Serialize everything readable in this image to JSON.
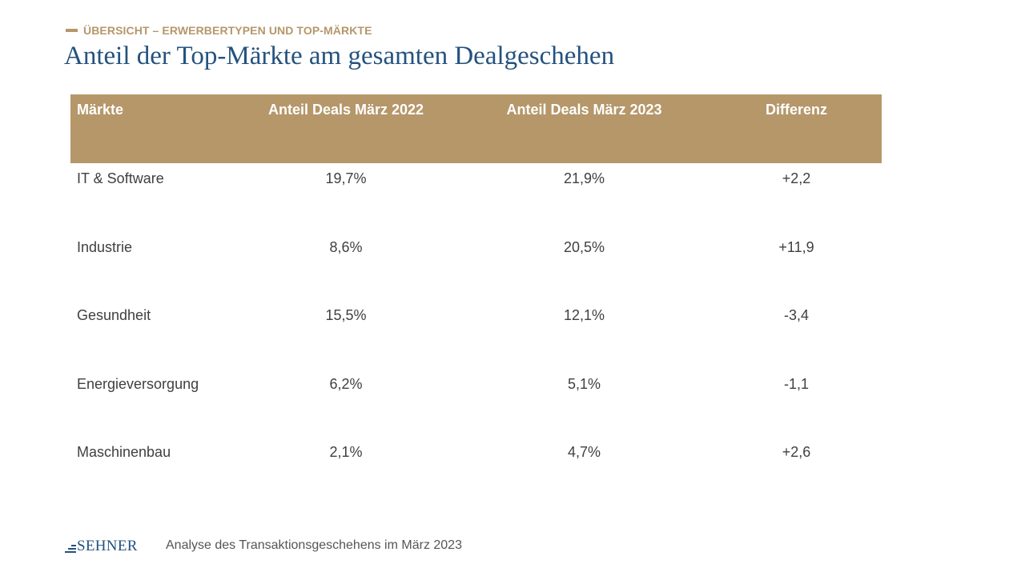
{
  "header": {
    "kicker": "ÜBERSICHT – ERWERBERTYPEN  UND TOP-MÄRKTE",
    "title": "Anteil der Top-Märkte am gesamten Dealgeschehen"
  },
  "table": {
    "columns": [
      "Märkte",
      "Anteil Deals März 2022",
      "Anteil Deals März 2023",
      "Differenz"
    ],
    "rows": [
      {
        "market": "IT & Software",
        "share_2022": "19,7%",
        "share_2023": "21,9%",
        "diff": "+2,2"
      },
      {
        "market": "Industrie",
        "share_2022": "8,6%",
        "share_2023": "20,5%",
        "diff": "+11,9"
      },
      {
        "market": "Gesundheit",
        "share_2022": "15,5%",
        "share_2023": "12,1%",
        "diff": "-3,4"
      },
      {
        "market": "Energieversorgung",
        "share_2022": "6,2%",
        "share_2023": "5,1%",
        "diff": "-1,1"
      },
      {
        "market": "Maschinenbau",
        "share_2022": "2,1%",
        "share_2023": "4,7%",
        "diff": "+2,6"
      }
    ]
  },
  "footer": {
    "logo_text": "SEHNER",
    "caption": "Analyse des Transaktionsgeschehens im März 2023"
  },
  "colors": {
    "accent_gold": "#b5976a",
    "title_blue": "#24527f",
    "body_text": "#404040"
  }
}
